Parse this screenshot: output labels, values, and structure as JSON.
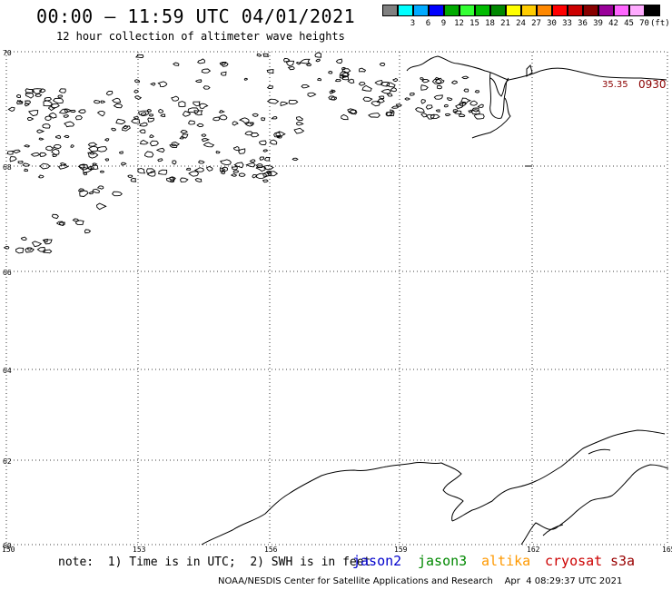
{
  "header": {
    "title": "00:00 – 11:59 UTC 04/01/2021",
    "subtitle": "12 hour collection of altimeter wave heights"
  },
  "scale": {
    "unit": "(ft)",
    "bins": [
      {
        "label": "",
        "color": "#808080"
      },
      {
        "label": "3",
        "color": "#00ffff"
      },
      {
        "label": "6",
        "color": "#00aaff"
      },
      {
        "label": "9",
        "color": "#0000ff"
      },
      {
        "label": "12",
        "color": "#00aa00"
      },
      {
        "label": "15",
        "color": "#33ff33"
      },
      {
        "label": "18",
        "color": "#00bb00"
      },
      {
        "label": "21",
        "color": "#008800"
      },
      {
        "label": "24",
        "color": "#ffff00"
      },
      {
        "label": "27",
        "color": "#ffcc00"
      },
      {
        "label": "30",
        "color": "#ff8800"
      },
      {
        "label": "33",
        "color": "#ff0000"
      },
      {
        "label": "36",
        "color": "#cc0000"
      },
      {
        "label": "39",
        "color": "#880000"
      },
      {
        "label": "42",
        "color": "#990099"
      },
      {
        "label": "45",
        "color": "#ff66ff"
      },
      {
        "label": "70",
        "color": "#ffaaff"
      },
      {
        "label": "",
        "color": "#000000"
      }
    ]
  },
  "axes": {
    "lat_labels": [
      "70",
      "68",
      "66",
      "64",
      "62",
      "60"
    ],
    "lon_labels": [
      "150",
      "153",
      "156",
      "159",
      "162",
      "165"
    ]
  },
  "footer": {
    "note": "note:  1) Time is in UTC;  2) SWH is in feet",
    "satellites": [
      {
        "name": "jason2",
        "color": "#0000cc"
      },
      {
        "name": "jason3",
        "color": "#008800"
      },
      {
        "name": "altika",
        "color": "#ff9900"
      },
      {
        "name": "cryosat",
        "color": "#cc0000"
      },
      {
        "name": "s3a",
        "color": "#990000"
      }
    ],
    "credit": "NOAA/NESDIS Center for Satellite Applications and Research    Apr  4 08:29:37 UTC 2021"
  },
  "observation": {
    "value": "35.35",
    "time": "0930",
    "color": "#8b0000"
  }
}
